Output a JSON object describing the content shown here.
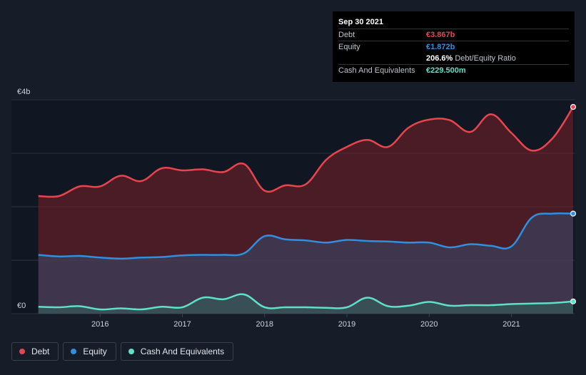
{
  "tooltip": {
    "date": "Sep 30 2021",
    "rows": [
      {
        "label": "Debt",
        "value": "€3.867b",
        "color": "#e8454f"
      },
      {
        "label": "Equity",
        "value": "€1.872b",
        "color": "#2f8fe0"
      },
      {
        "label": "",
        "value": "206.6%",
        "extra": "Debt/Equity Ratio",
        "color": "#ffffff"
      },
      {
        "label": "Cash And Equivalents",
        "value": "€229.500m",
        "color": "#5fe0c8"
      }
    ]
  },
  "legend": [
    {
      "label": "Debt",
      "color": "#e8454f"
    },
    {
      "label": "Equity",
      "color": "#2f8fe0"
    },
    {
      "label": "Cash And Equivalents",
      "color": "#5fe0c8"
    }
  ],
  "chart_data": {
    "type": "area",
    "y_axis_labels": [
      "€4b",
      "€0"
    ],
    "ylim": [
      0,
      4
    ],
    "xlim": [
      2015.2,
      2021.75
    ],
    "x_ticks": [
      2016,
      2017,
      2018,
      2019,
      2020,
      2021
    ],
    "x_tick_labels": [
      "2016",
      "2017",
      "2018",
      "2019",
      "2020",
      "2021"
    ],
    "grid": true,
    "legend_placement": "bottom-left",
    "series": [
      {
        "name": "Debt",
        "color": "#e8454f",
        "x": [
          2015.25,
          2015.5,
          2015.75,
          2016.0,
          2016.25,
          2016.5,
          2016.75,
          2017.0,
          2017.25,
          2017.5,
          2017.75,
          2018.0,
          2018.25,
          2018.5,
          2018.75,
          2019.0,
          2019.25,
          2019.5,
          2019.75,
          2020.0,
          2020.25,
          2020.5,
          2020.75,
          2021.0,
          2021.25,
          2021.5,
          2021.75
        ],
        "values": [
          2.2,
          2.2,
          2.38,
          2.38,
          2.58,
          2.48,
          2.72,
          2.68,
          2.7,
          2.65,
          2.8,
          2.3,
          2.4,
          2.42,
          2.88,
          3.12,
          3.25,
          3.12,
          3.48,
          3.63,
          3.62,
          3.4,
          3.73,
          3.38,
          3.05,
          3.28,
          3.867
        ]
      },
      {
        "name": "Equity",
        "color": "#2f8fe0",
        "x": [
          2015.25,
          2015.5,
          2015.75,
          2016.0,
          2016.25,
          2016.5,
          2016.75,
          2017.0,
          2017.25,
          2017.5,
          2017.75,
          2018.0,
          2018.25,
          2018.5,
          2018.75,
          2019.0,
          2019.25,
          2019.5,
          2019.75,
          2020.0,
          2020.25,
          2020.5,
          2020.75,
          2021.0,
          2021.25,
          2021.5,
          2021.75
        ],
        "values": [
          1.1,
          1.07,
          1.08,
          1.05,
          1.03,
          1.05,
          1.06,
          1.09,
          1.1,
          1.1,
          1.13,
          1.45,
          1.39,
          1.37,
          1.33,
          1.38,
          1.36,
          1.35,
          1.33,
          1.33,
          1.24,
          1.3,
          1.27,
          1.26,
          1.8,
          1.872,
          1.872
        ]
      },
      {
        "name": "Cash And Equivalents",
        "color": "#5fe0c8",
        "x": [
          2015.25,
          2015.5,
          2015.75,
          2016.0,
          2016.25,
          2016.5,
          2016.75,
          2017.0,
          2017.25,
          2017.5,
          2017.75,
          2018.0,
          2018.25,
          2018.5,
          2018.75,
          2019.0,
          2019.25,
          2019.5,
          2019.75,
          2020.0,
          2020.25,
          2020.5,
          2020.75,
          2021.0,
          2021.25,
          2021.5,
          2021.75
        ],
        "values": [
          0.13,
          0.12,
          0.14,
          0.08,
          0.1,
          0.08,
          0.13,
          0.12,
          0.3,
          0.27,
          0.36,
          0.12,
          0.12,
          0.12,
          0.11,
          0.12,
          0.3,
          0.14,
          0.15,
          0.22,
          0.15,
          0.16,
          0.16,
          0.18,
          0.19,
          0.2,
          0.2295
        ]
      }
    ]
  }
}
